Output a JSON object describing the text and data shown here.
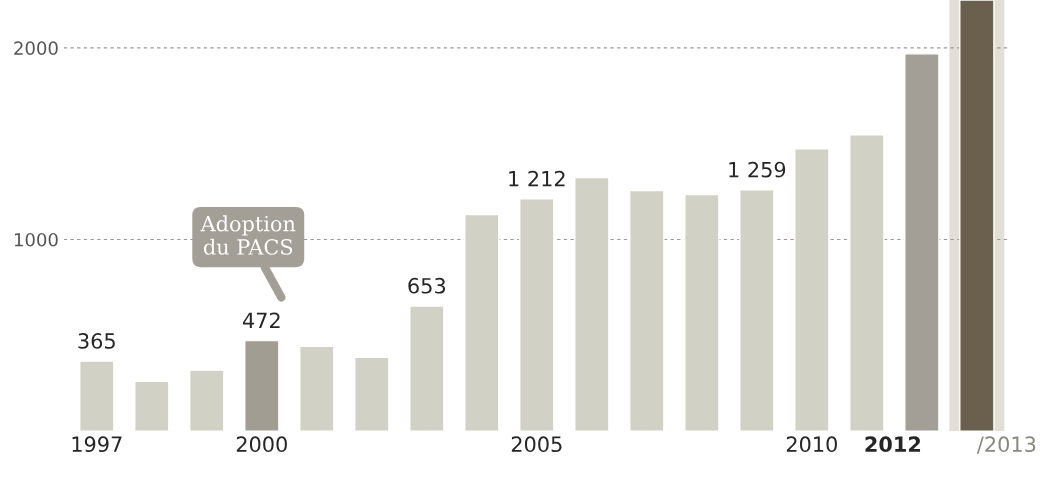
{
  "chart_data": {
    "type": "bar",
    "categories": [
      "1997",
      null,
      null,
      "2000",
      null,
      null,
      null,
      null,
      "2005",
      null,
      null,
      null,
      null,
      "2010",
      null,
      "2012",
      "/2013"
    ],
    "values": [
      365,
      260,
      318,
      472,
      443,
      385,
      653,
      1130,
      1212,
      1323,
      1255,
      1234,
      1259,
      1474,
      1547,
      1969,
      2250
    ],
    "colors": [
      "#d1d1c5",
      "#d1d1c5",
      "#d1d1c5",
      "#a29d92",
      "#d1d1c5",
      "#d1d1c5",
      "#d1d1c5",
      "#d1d1c5",
      "#d1d1c5",
      "#d1d1c5",
      "#d1d1c5",
      "#d1d1c5",
      "#d1d1c5",
      "#d1d1c5",
      "#d1d1c5",
      "#a39e96",
      "#6b5f4e"
    ],
    "value_labels": [
      "365",
      null,
      null,
      "472",
      null,
      null,
      "653",
      null,
      "1 212",
      null,
      null,
      null,
      "1 259",
      null,
      null,
      null,
      null
    ],
    "ylim": [
      0,
      2250
    ],
    "yticks": [
      1000,
      2000
    ],
    "grid": "y",
    "bands": [
      {
        "axis": "x",
        "from": "/2013",
        "to": "/2013",
        "color": "#e3ded6"
      }
    ],
    "annotations": [
      "Adoption\ndu PACS"
    ]
  }
}
